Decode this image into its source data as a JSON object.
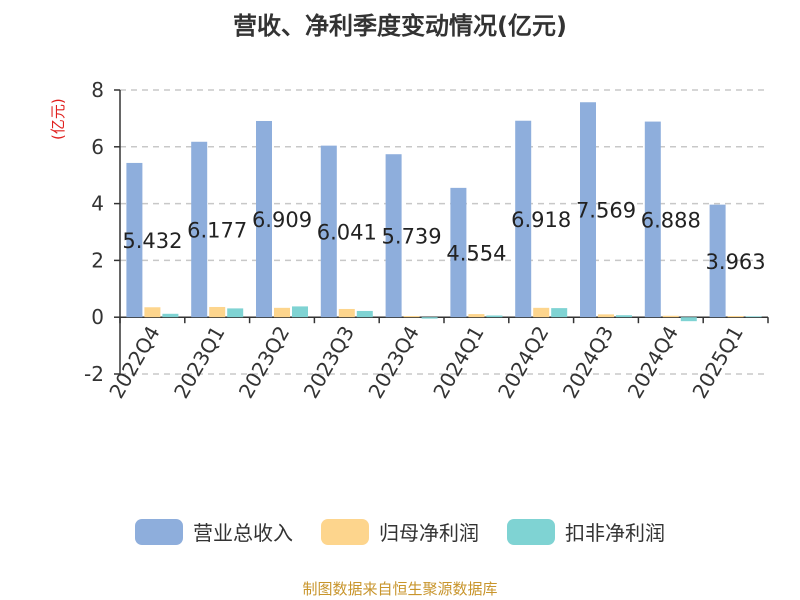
{
  "title": "营收、净利季度变动情况(亿元)",
  "source": "制图数据来自恒生聚源数据库",
  "colors": {
    "revenue": "#8eaedc",
    "net_profit": "#fdd58d",
    "deducted_profit": "#7fd3d3",
    "ylabel": "#e0201e",
    "source": "#c8952c",
    "grid": "#c8c8c8",
    "axis": "#333333"
  },
  "chart_data": {
    "type": "bar",
    "title": "营收、净利季度变动情况(亿元)",
    "ylabel": "(亿元)",
    "xlabel": "",
    "ylim": [
      -2,
      8
    ],
    "yticks": [
      -2,
      0,
      2,
      4,
      6,
      8
    ],
    "grid": true,
    "legend_position": "bottom",
    "categories": [
      "2022Q4",
      "2023Q1",
      "2023Q2",
      "2023Q3",
      "2023Q4",
      "2024Q1",
      "2024Q2",
      "2024Q3",
      "2024Q4",
      "2025Q1"
    ],
    "series": [
      {
        "name": "营业总收入",
        "values": [
          5.432,
          6.177,
          6.909,
          6.041,
          5.739,
          4.554,
          6.918,
          7.569,
          6.888,
          3.963
        ]
      },
      {
        "name": "归母净利润",
        "values": [
          0.35,
          0.36,
          0.33,
          0.29,
          0.04,
          0.11,
          0.33,
          0.1,
          0.05,
          0.04
        ]
      },
      {
        "name": "扣非净利润",
        "values": [
          0.12,
          0.31,
          0.38,
          0.22,
          -0.05,
          0.06,
          0.32,
          0.07,
          -0.14,
          0.03
        ]
      }
    ],
    "data_labels": [
      "5.432",
      "6.177",
      "6.909",
      "6.041",
      "5.739",
      "4.554",
      "6.918",
      "7.569",
      "6.888",
      "3.963"
    ]
  }
}
